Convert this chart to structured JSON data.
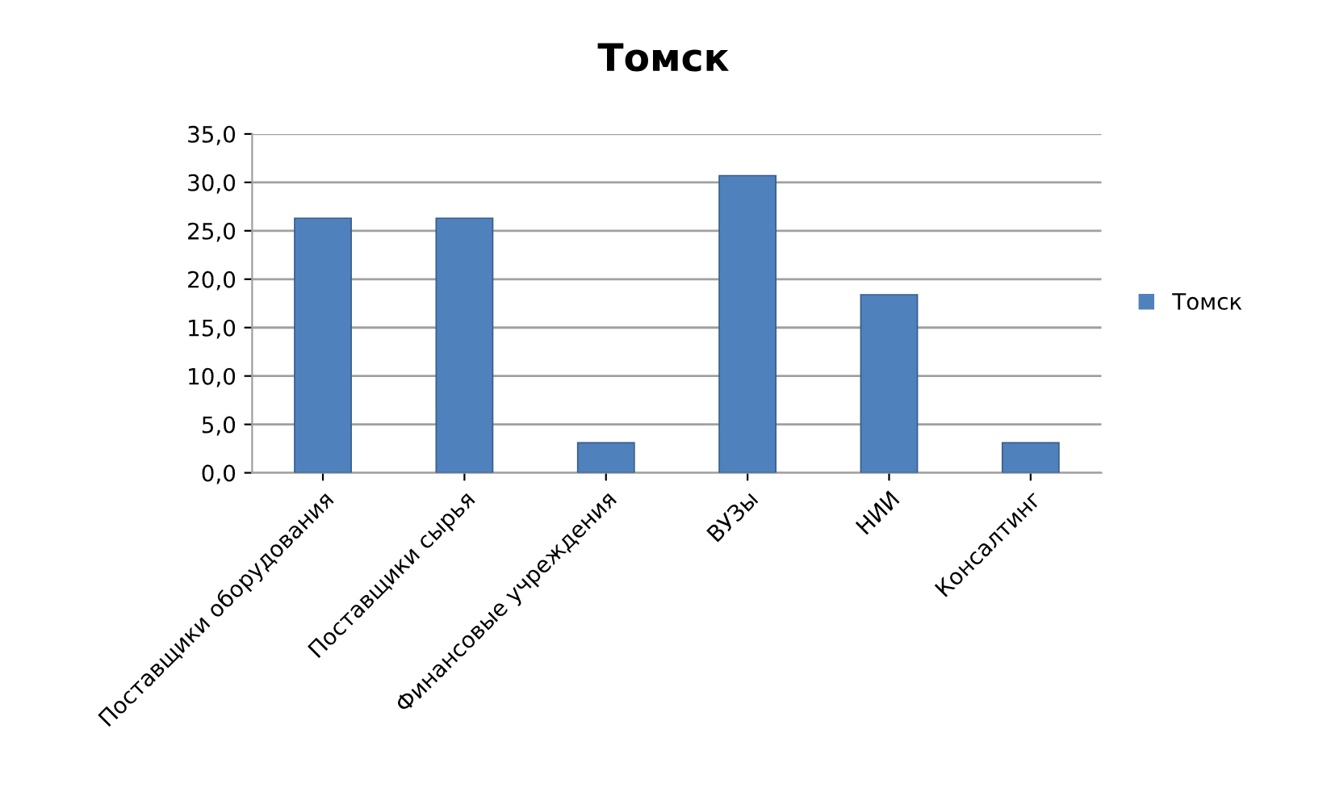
{
  "chart_data": {
    "type": "bar",
    "title": "Томск",
    "categories": [
      "Поставщики оборудования",
      "Поставщики сырья",
      "Финансовые учреждения",
      "ВУЗы",
      "НИИ",
      "Консалтинг"
    ],
    "series": [
      {
        "name": "Томск",
        "color": "#4f81bd",
        "values": [
          26.3,
          26.3,
          3.1,
          30.7,
          18.4,
          3.1
        ]
      }
    ],
    "ylim": [
      0,
      35
    ],
    "yticks": [
      {
        "value": 0,
        "label": "0,0"
      },
      {
        "value": 5,
        "label": "5,0"
      },
      {
        "value": 10,
        "label": "10,0"
      },
      {
        "value": 15,
        "label": "15,0"
      },
      {
        "value": 20,
        "label": "20,0"
      },
      {
        "value": 25,
        "label": "25,0"
      },
      {
        "value": 30,
        "label": "30,0"
      },
      {
        "value": 35,
        "label": "35,0"
      }
    ],
    "grid": "y",
    "legend": "right"
  }
}
